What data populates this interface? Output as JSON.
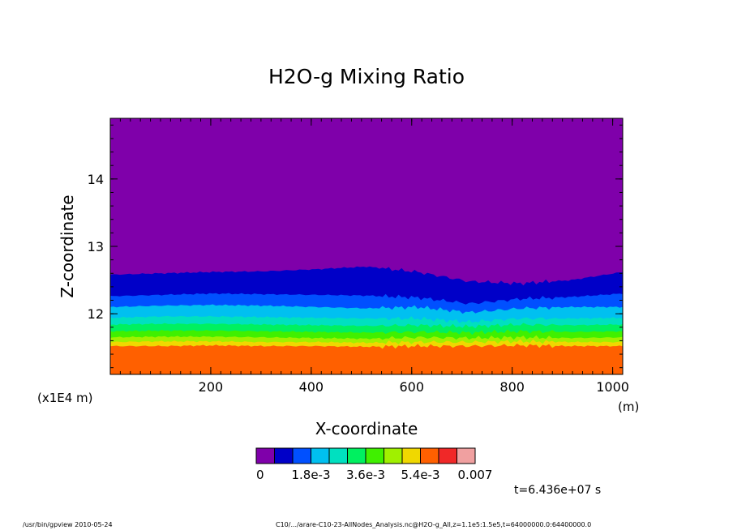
{
  "chart_data": {
    "type": "contour",
    "title": "H2O-g Mixing Ratio",
    "xlabel": "X-coordinate",
    "ylabel": "Z-coordinate",
    "x_unit": "(m)",
    "y_unit": "(x1E4 m)",
    "xlim": [
      0,
      1020
    ],
    "ylim": [
      11.1,
      14.9
    ],
    "x_ticks": [
      200,
      400,
      600,
      800,
      1000
    ],
    "y_ticks": [
      12,
      13,
      14
    ],
    "x_tick_labels": [
      "200",
      "400",
      "600",
      "800",
      "1000"
    ],
    "y_tick_labels": [
      "12",
      "13",
      "14"
    ],
    "x_minor_step": 20,
    "y_minor_step": 0.2,
    "levels": [
      0,
      0.0006,
      0.0012,
      0.0018,
      0.0024,
      0.003,
      0.0036,
      0.0042,
      0.0048,
      0.0054,
      0.006,
      0.0066,
      0.007
    ],
    "colorbar": {
      "colors": [
        "#7f00aa",
        "#0000c8",
        "#0050ff",
        "#00c0f0",
        "#00e0c0",
        "#00f060",
        "#40f000",
        "#a0f000",
        "#f0d800",
        "#ff6000",
        "#f02828",
        "#f0a0a0"
      ],
      "labels": [
        "0",
        "1.8e-3",
        "3.6e-3",
        "5.4e-3",
        "0.007"
      ],
      "label_at_box": [
        0,
        3,
        6,
        9,
        12
      ]
    },
    "bands": [
      {
        "color": "#ff6000",
        "z_top": [
          11.52,
          11.52,
          11.53,
          11.52,
          11.52,
          11.51,
          11.52,
          11.52,
          11.53,
          11.52,
          11.52
        ]
      },
      {
        "color": "#f0d800",
        "z_top": [
          11.58,
          11.59,
          11.59,
          11.58,
          11.58,
          11.57,
          11.58,
          11.58,
          11.59,
          11.58,
          11.58
        ]
      },
      {
        "color": "#a0f000",
        "z_top": [
          11.65,
          11.66,
          11.66,
          11.65,
          11.64,
          11.63,
          11.65,
          11.64,
          11.65,
          11.64,
          11.65
        ]
      },
      {
        "color": "#40f000",
        "z_top": [
          11.74,
          11.75,
          11.75,
          11.74,
          11.73,
          11.72,
          11.73,
          11.72,
          11.74,
          11.73,
          11.74
        ]
      },
      {
        "color": "#00f060",
        "z_top": [
          11.84,
          11.85,
          11.85,
          11.84,
          11.83,
          11.82,
          11.83,
          11.81,
          11.84,
          11.83,
          11.84
        ]
      },
      {
        "color": "#00e0c0",
        "z_top": [
          11.94,
          11.96,
          11.96,
          11.95,
          11.94,
          11.93,
          11.93,
          11.88,
          11.93,
          11.93,
          11.94
        ]
      },
      {
        "color": "#00c0f0",
        "z_top": [
          12.1,
          12.12,
          12.13,
          12.12,
          12.1,
          12.08,
          12.1,
          12.02,
          12.08,
          12.1,
          12.1
        ]
      },
      {
        "color": "#0050ff",
        "z_top": [
          12.26,
          12.28,
          12.3,
          12.29,
          12.28,
          12.27,
          12.24,
          12.15,
          12.22,
          12.25,
          12.3
        ]
      },
      {
        "color": "#0000c8",
        "z_top": [
          12.58,
          12.6,
          12.62,
          12.63,
          12.66,
          12.7,
          12.62,
          12.48,
          12.45,
          12.5,
          12.62
        ]
      }
    ],
    "background_color": "#7f00aa"
  },
  "footer": {
    "left": "/usr/bin/gpview  2010-05-24",
    "right": "C10/.../arare-C10-23-AllNodes_Analysis.nc@H2O-g_All,z=1.1e5:1.5e5,t=64000000.0:64400000.0",
    "time": "t=6.436e+07 s"
  }
}
